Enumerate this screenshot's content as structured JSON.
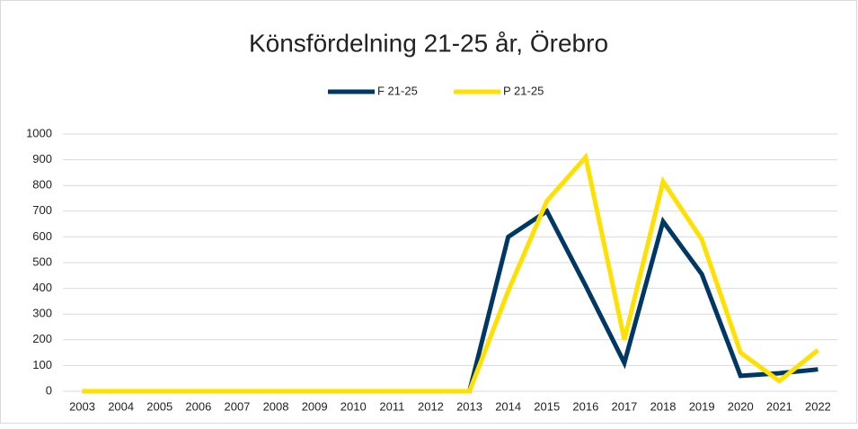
{
  "chart_data": {
    "type": "line",
    "title": "Könsfördelning 21-25 år, Örebro",
    "categories": [
      "2003",
      "2004",
      "2005",
      "2006",
      "2007",
      "2008",
      "2009",
      "2010",
      "2011",
      "2012",
      "2013",
      "2014",
      "2015",
      "2016",
      "2017",
      "2018",
      "2019",
      "2020",
      "2021",
      "2022"
    ],
    "series": [
      {
        "name": "F 21-25",
        "color": "#003865",
        "values": [
          0,
          0,
          0,
          0,
          0,
          0,
          0,
          0,
          0,
          0,
          0,
          600,
          700,
          410,
          110,
          660,
          455,
          60,
          70,
          85
        ]
      },
      {
        "name": "P 21-25",
        "color": "#ffe000",
        "values": [
          0,
          0,
          0,
          0,
          0,
          0,
          0,
          0,
          0,
          0,
          0,
          390,
          740,
          910,
          200,
          815,
          590,
          150,
          40,
          160
        ]
      }
    ],
    "ylim": [
      0,
      1000
    ],
    "yticks": [
      0,
      100,
      200,
      300,
      400,
      500,
      600,
      700,
      800,
      900,
      1000
    ],
    "grid": true,
    "legend": "top"
  }
}
